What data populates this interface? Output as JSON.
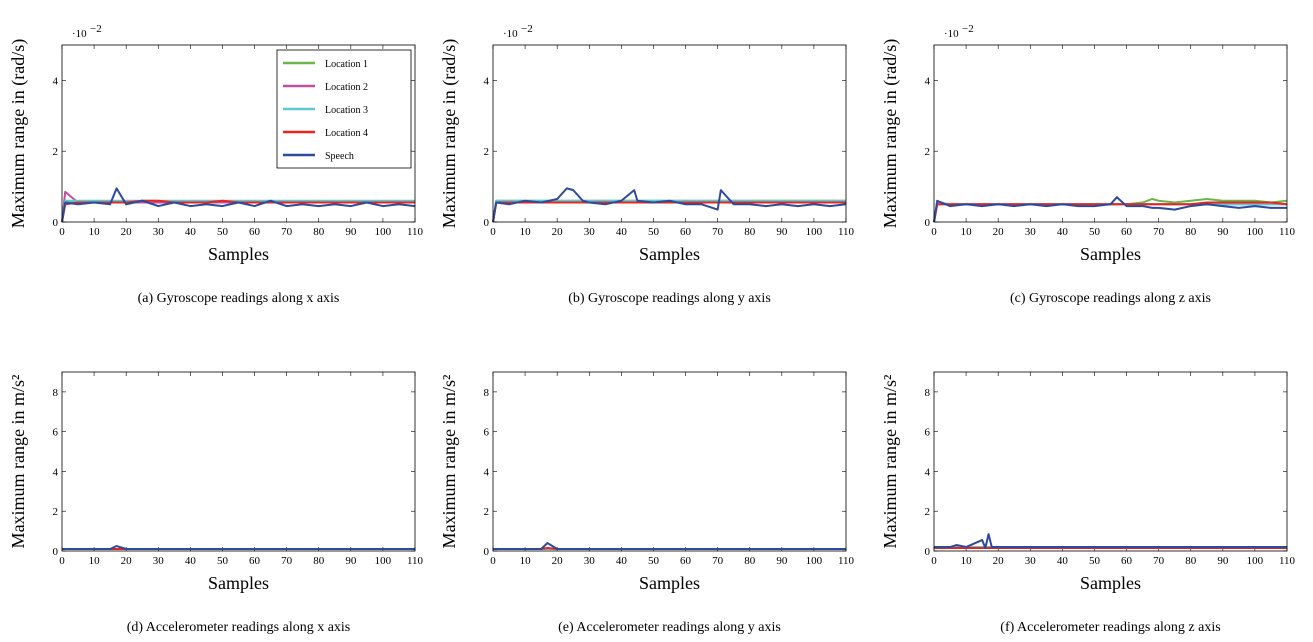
{
  "chart_data": [
    {
      "type": "line",
      "caption": "(a) Gyroscope readings along x axis",
      "xlabel": "Samples",
      "ylabel": "Maximum range in (rad/s)",
      "y_scale": {
        "base": "·10",
        "exponent": "−2"
      },
      "xlim": [
        0,
        110
      ],
      "xticks": [
        0,
        10,
        20,
        30,
        40,
        50,
        60,
        70,
        80,
        90,
        100,
        110
      ],
      "ylim": [
        0,
        5
      ],
      "yticks": [
        0,
        2,
        4
      ],
      "legend": "top-right",
      "x": [
        0,
        1,
        5,
        10,
        15,
        17,
        20,
        25,
        30,
        35,
        40,
        45,
        50,
        55,
        60,
        65,
        70,
        75,
        80,
        85,
        90,
        95,
        100,
        105,
        110
      ],
      "series": [
        {
          "name": "Location 1",
          "color": "#6ab64a",
          "values": [
            0,
            0.6,
            0.55,
            0.55,
            0.55,
            0.55,
            0.55,
            0.6,
            0.55,
            0.55,
            0.55,
            0.55,
            0.55,
            0.55,
            0.55,
            0.55,
            0.55,
            0.55,
            0.55,
            0.55,
            0.55,
            0.55,
            0.55,
            0.55,
            0.55
          ]
        },
        {
          "name": "Location 2",
          "color": "#c0509c",
          "values": [
            0,
            0.85,
            0.55,
            0.55,
            0.55,
            0.55,
            0.55,
            0.55,
            0.55,
            0.55,
            0.55,
            0.55,
            0.55,
            0.55,
            0.55,
            0.55,
            0.55,
            0.55,
            0.55,
            0.55,
            0.55,
            0.55,
            0.55,
            0.55,
            0.55
          ]
        },
        {
          "name": "Location 3",
          "color": "#5cc8d0",
          "values": [
            0,
            0.6,
            0.6,
            0.6,
            0.6,
            0.6,
            0.6,
            0.6,
            0.6,
            0.6,
            0.6,
            0.6,
            0.6,
            0.6,
            0.6,
            0.6,
            0.6,
            0.6,
            0.6,
            0.6,
            0.6,
            0.6,
            0.6,
            0.6,
            0.6
          ]
        },
        {
          "name": "Location 4",
          "color": "#e8241c",
          "values": [
            0,
            0.5,
            0.55,
            0.55,
            0.55,
            0.55,
            0.55,
            0.6,
            0.6,
            0.55,
            0.55,
            0.55,
            0.6,
            0.55,
            0.55,
            0.55,
            0.55,
            0.55,
            0.55,
            0.55,
            0.55,
            0.55,
            0.55,
            0.55,
            0.55
          ]
        },
        {
          "name": "Speech",
          "color": "#2e4a9c",
          "values": [
            0,
            0.55,
            0.5,
            0.55,
            0.5,
            0.95,
            0.5,
            0.6,
            0.45,
            0.55,
            0.45,
            0.5,
            0.45,
            0.55,
            0.45,
            0.6,
            0.45,
            0.5,
            0.45,
            0.5,
            0.45,
            0.55,
            0.45,
            0.5,
            0.45
          ]
        }
      ]
    },
    {
      "type": "line",
      "caption": "(b) Gyroscope readings along y axis",
      "xlabel": "Samples",
      "ylabel": "Maximum range in (rad/s)",
      "y_scale": {
        "base": "·10",
        "exponent": "−2"
      },
      "xlim": [
        0,
        110
      ],
      "xticks": [
        0,
        10,
        20,
        30,
        40,
        50,
        60,
        70,
        80,
        90,
        100,
        110
      ],
      "ylim": [
        0,
        5
      ],
      "yticks": [
        0,
        2,
        4
      ],
      "x": [
        0,
        1,
        5,
        10,
        15,
        20,
        23,
        25,
        28,
        30,
        35,
        40,
        44,
        45,
        50,
        55,
        60,
        65,
        70,
        71,
        75,
        80,
        85,
        90,
        95,
        100,
        105,
        110
      ],
      "series": [
        {
          "name": "Location 1",
          "color": "#6ab64a",
          "values": [
            0,
            0.6,
            0.6,
            0.6,
            0.6,
            0.6,
            0.6,
            0.6,
            0.6,
            0.6,
            0.6,
            0.6,
            0.6,
            0.6,
            0.6,
            0.6,
            0.6,
            0.6,
            0.6,
            0.6,
            0.6,
            0.6,
            0.6,
            0.6,
            0.6,
            0.6,
            0.6,
            0.6
          ]
        },
        {
          "name": "Location 2",
          "color": "#c0509c",
          "values": [
            0,
            0.55,
            0.55,
            0.55,
            0.55,
            0.55,
            0.55,
            0.55,
            0.55,
            0.55,
            0.55,
            0.55,
            0.55,
            0.55,
            0.55,
            0.55,
            0.55,
            0.55,
            0.55,
            0.55,
            0.55,
            0.55,
            0.55,
            0.55,
            0.55,
            0.55,
            0.55,
            0.55
          ]
        },
        {
          "name": "Location 3",
          "color": "#5cc8d0",
          "values": [
            0,
            0.6,
            0.6,
            0.6,
            0.6,
            0.6,
            0.6,
            0.6,
            0.6,
            0.6,
            0.6,
            0.6,
            0.6,
            0.6,
            0.6,
            0.6,
            0.6,
            0.6,
            0.6,
            0.6,
            0.6,
            0.6,
            0.6,
            0.6,
            0.6,
            0.6,
            0.6,
            0.6
          ]
        },
        {
          "name": "Location 4",
          "color": "#e8241c",
          "values": [
            0,
            0.55,
            0.55,
            0.55,
            0.55,
            0.55,
            0.55,
            0.55,
            0.55,
            0.55,
            0.55,
            0.55,
            0.55,
            0.55,
            0.55,
            0.55,
            0.55,
            0.55,
            0.55,
            0.55,
            0.55,
            0.55,
            0.55,
            0.55,
            0.55,
            0.55,
            0.55,
            0.55
          ]
        },
        {
          "name": "Speech",
          "color": "#2e4a9c",
          "values": [
            0,
            0.55,
            0.5,
            0.6,
            0.55,
            0.65,
            0.95,
            0.9,
            0.6,
            0.55,
            0.5,
            0.6,
            0.9,
            0.6,
            0.55,
            0.6,
            0.5,
            0.5,
            0.35,
            0.9,
            0.5,
            0.5,
            0.45,
            0.5,
            0.45,
            0.5,
            0.45,
            0.5
          ]
        }
      ]
    },
    {
      "type": "line",
      "caption": "(c) Gyroscope readings along z axis",
      "xlabel": "Samples",
      "ylabel": "Maximum range in (rad/s)",
      "y_scale": {
        "base": "·10",
        "exponent": "−2"
      },
      "xlim": [
        0,
        110
      ],
      "xticks": [
        0,
        10,
        20,
        30,
        40,
        50,
        60,
        70,
        80,
        90,
        100,
        110
      ],
      "ylim": [
        0,
        5
      ],
      "yticks": [
        0,
        2,
        4
      ],
      "x": [
        0,
        1,
        5,
        10,
        15,
        20,
        25,
        30,
        35,
        40,
        45,
        50,
        55,
        57,
        60,
        65,
        68,
        70,
        75,
        80,
        85,
        90,
        95,
        100,
        105,
        110
      ],
      "series": [
        {
          "name": "Location 1",
          "color": "#6ab64a",
          "values": [
            0,
            0.55,
            0.5,
            0.5,
            0.5,
            0.5,
            0.5,
            0.5,
            0.5,
            0.5,
            0.5,
            0.5,
            0.5,
            0.5,
            0.5,
            0.55,
            0.65,
            0.6,
            0.55,
            0.6,
            0.65,
            0.6,
            0.6,
            0.6,
            0.55,
            0.6
          ]
        },
        {
          "name": "Location 2",
          "color": "#c0509c",
          "values": [
            0,
            0.5,
            0.5,
            0.5,
            0.5,
            0.5,
            0.5,
            0.5,
            0.5,
            0.5,
            0.5,
            0.5,
            0.5,
            0.5,
            0.5,
            0.5,
            0.5,
            0.5,
            0.5,
            0.5,
            0.5,
            0.5,
            0.5,
            0.5,
            0.5,
            0.5
          ]
        },
        {
          "name": "Location 3",
          "color": "#5cc8d0",
          "values": [
            0,
            0.55,
            0.5,
            0.5,
            0.5,
            0.5,
            0.5,
            0.5,
            0.5,
            0.5,
            0.5,
            0.5,
            0.5,
            0.5,
            0.5,
            0.5,
            0.5,
            0.5,
            0.5,
            0.5,
            0.5,
            0.5,
            0.5,
            0.5,
            0.5,
            0.5
          ]
        },
        {
          "name": "Location 4",
          "color": "#e8241c",
          "values": [
            0,
            0.5,
            0.5,
            0.5,
            0.5,
            0.5,
            0.5,
            0.5,
            0.5,
            0.5,
            0.5,
            0.5,
            0.5,
            0.5,
            0.5,
            0.5,
            0.5,
            0.5,
            0.5,
            0.5,
            0.55,
            0.55,
            0.55,
            0.55,
            0.55,
            0.5
          ]
        },
        {
          "name": "Speech",
          "color": "#2e4a9c",
          "values": [
            0,
            0.6,
            0.45,
            0.5,
            0.45,
            0.5,
            0.45,
            0.5,
            0.45,
            0.5,
            0.45,
            0.45,
            0.5,
            0.7,
            0.45,
            0.45,
            0.4,
            0.4,
            0.35,
            0.45,
            0.5,
            0.45,
            0.4,
            0.45,
            0.4,
            0.4
          ]
        }
      ]
    },
    {
      "type": "line",
      "caption": "(d) Accelerometer readings along x axis",
      "xlabel": "Samples",
      "ylabel": "Maximum range in m/s²",
      "xlim": [
        0,
        110
      ],
      "xticks": [
        0,
        10,
        20,
        30,
        40,
        50,
        60,
        70,
        80,
        90,
        100,
        110
      ],
      "ylim": [
        0,
        9
      ],
      "yticks": [
        0,
        2,
        4,
        6,
        8
      ],
      "x": [
        0,
        5,
        10,
        15,
        17,
        20,
        30,
        40,
        50,
        60,
        70,
        80,
        90,
        100,
        110
      ],
      "series": [
        {
          "name": "Location 1",
          "color": "#6ab64a",
          "values": [
            0.1,
            0.1,
            0.1,
            0.1,
            0.1,
            0.1,
            0.1,
            0.1,
            0.1,
            0.1,
            0.1,
            0.1,
            0.1,
            0.1,
            0.1
          ]
        },
        {
          "name": "Location 2",
          "color": "#c0509c",
          "values": [
            0.1,
            0.1,
            0.1,
            0.1,
            0.1,
            0.1,
            0.1,
            0.1,
            0.1,
            0.1,
            0.1,
            0.1,
            0.1,
            0.1,
            0.1
          ]
        },
        {
          "name": "Location 3",
          "color": "#5cc8d0",
          "values": [
            0.1,
            0.1,
            0.1,
            0.1,
            0.1,
            0.1,
            0.1,
            0.1,
            0.1,
            0.1,
            0.1,
            0.1,
            0.1,
            0.1,
            0.1
          ]
        },
        {
          "name": "Location 4",
          "color": "#e8241c",
          "values": [
            0.1,
            0.1,
            0.1,
            0.1,
            0.1,
            0.1,
            0.1,
            0.1,
            0.1,
            0.1,
            0.1,
            0.1,
            0.1,
            0.1,
            0.1
          ]
        },
        {
          "name": "Speech",
          "color": "#2e4a9c",
          "values": [
            0.1,
            0.1,
            0.1,
            0.1,
            0.25,
            0.1,
            0.1,
            0.1,
            0.1,
            0.1,
            0.1,
            0.1,
            0.1,
            0.1,
            0.1
          ]
        }
      ]
    },
    {
      "type": "line",
      "caption": "(e) Accelerometer readings along y axis",
      "xlabel": "Samples",
      "ylabel": "Maximum range in m/s²",
      "xlim": [
        0,
        110
      ],
      "xticks": [
        0,
        10,
        20,
        30,
        40,
        50,
        60,
        70,
        80,
        90,
        100,
        110
      ],
      "ylim": [
        0,
        9
      ],
      "yticks": [
        0,
        2,
        4,
        6,
        8
      ],
      "x": [
        0,
        5,
        10,
        15,
        17,
        20,
        30,
        40,
        50,
        60,
        70,
        80,
        90,
        100,
        110
      ],
      "series": [
        {
          "name": "Location 1",
          "color": "#6ab64a",
          "values": [
            0.1,
            0.1,
            0.1,
            0.1,
            0.1,
            0.1,
            0.1,
            0.1,
            0.1,
            0.1,
            0.1,
            0.1,
            0.1,
            0.1,
            0.1
          ]
        },
        {
          "name": "Location 2",
          "color": "#c0509c",
          "values": [
            0.1,
            0.1,
            0.1,
            0.1,
            0.1,
            0.1,
            0.1,
            0.1,
            0.1,
            0.1,
            0.1,
            0.1,
            0.1,
            0.1,
            0.1
          ]
        },
        {
          "name": "Location 3",
          "color": "#5cc8d0",
          "values": [
            0.1,
            0.1,
            0.1,
            0.1,
            0.1,
            0.1,
            0.1,
            0.1,
            0.1,
            0.1,
            0.1,
            0.1,
            0.1,
            0.1,
            0.1
          ]
        },
        {
          "name": "Location 4",
          "color": "#e8241c",
          "values": [
            0.1,
            0.1,
            0.1,
            0.1,
            0.15,
            0.1,
            0.1,
            0.1,
            0.1,
            0.1,
            0.1,
            0.1,
            0.1,
            0.1,
            0.1
          ]
        },
        {
          "name": "Speech",
          "color": "#2e4a9c",
          "values": [
            0.1,
            0.1,
            0.1,
            0.1,
            0.4,
            0.1,
            0.1,
            0.1,
            0.1,
            0.1,
            0.1,
            0.1,
            0.1,
            0.1,
            0.1
          ]
        }
      ]
    },
    {
      "type": "line",
      "caption": "(f) Accelerometer readings along z axis",
      "xlabel": "Samples",
      "ylabel": "Maximum range in m/s²",
      "xlim": [
        0,
        110
      ],
      "xticks": [
        0,
        10,
        20,
        30,
        40,
        50,
        60,
        70,
        80,
        90,
        100,
        110
      ],
      "ylim": [
        0,
        9
      ],
      "yticks": [
        0,
        2,
        4,
        6,
        8
      ],
      "x": [
        0,
        5,
        7,
        10,
        15,
        16,
        17,
        18,
        20,
        30,
        40,
        50,
        60,
        70,
        80,
        90,
        100,
        110
      ],
      "series": [
        {
          "name": "Location 1",
          "color": "#6ab64a",
          "values": [
            0.2,
            0.2,
            0.2,
            0.2,
            0.2,
            0.2,
            0.2,
            0.2,
            0.2,
            0.2,
            0.2,
            0.2,
            0.2,
            0.2,
            0.2,
            0.2,
            0.2,
            0.2
          ]
        },
        {
          "name": "Location 2",
          "color": "#c0509c",
          "values": [
            0.2,
            0.2,
            0.2,
            0.2,
            0.2,
            0.2,
            0.2,
            0.2,
            0.2,
            0.2,
            0.2,
            0.2,
            0.2,
            0.2,
            0.2,
            0.2,
            0.2,
            0.2
          ]
        },
        {
          "name": "Location 3",
          "color": "#5cc8d0",
          "values": [
            0.2,
            0.2,
            0.2,
            0.2,
            0.2,
            0.2,
            0.2,
            0.2,
            0.2,
            0.2,
            0.2,
            0.2,
            0.2,
            0.2,
            0.2,
            0.2,
            0.2,
            0.2
          ]
        },
        {
          "name": "Location 4",
          "color": "#e8241c",
          "values": [
            0.15,
            0.15,
            0.15,
            0.15,
            0.15,
            0.15,
            0.15,
            0.15,
            0.15,
            0.15,
            0.15,
            0.15,
            0.15,
            0.15,
            0.15,
            0.15,
            0.15,
            0.15
          ]
        },
        {
          "name": "Speech",
          "color": "#2e4a9c",
          "values": [
            0.2,
            0.2,
            0.3,
            0.2,
            0.55,
            0.15,
            0.85,
            0.2,
            0.2,
            0.2,
            0.2,
            0.2,
            0.2,
            0.2,
            0.2,
            0.2,
            0.2,
            0.2
          ]
        }
      ]
    }
  ]
}
